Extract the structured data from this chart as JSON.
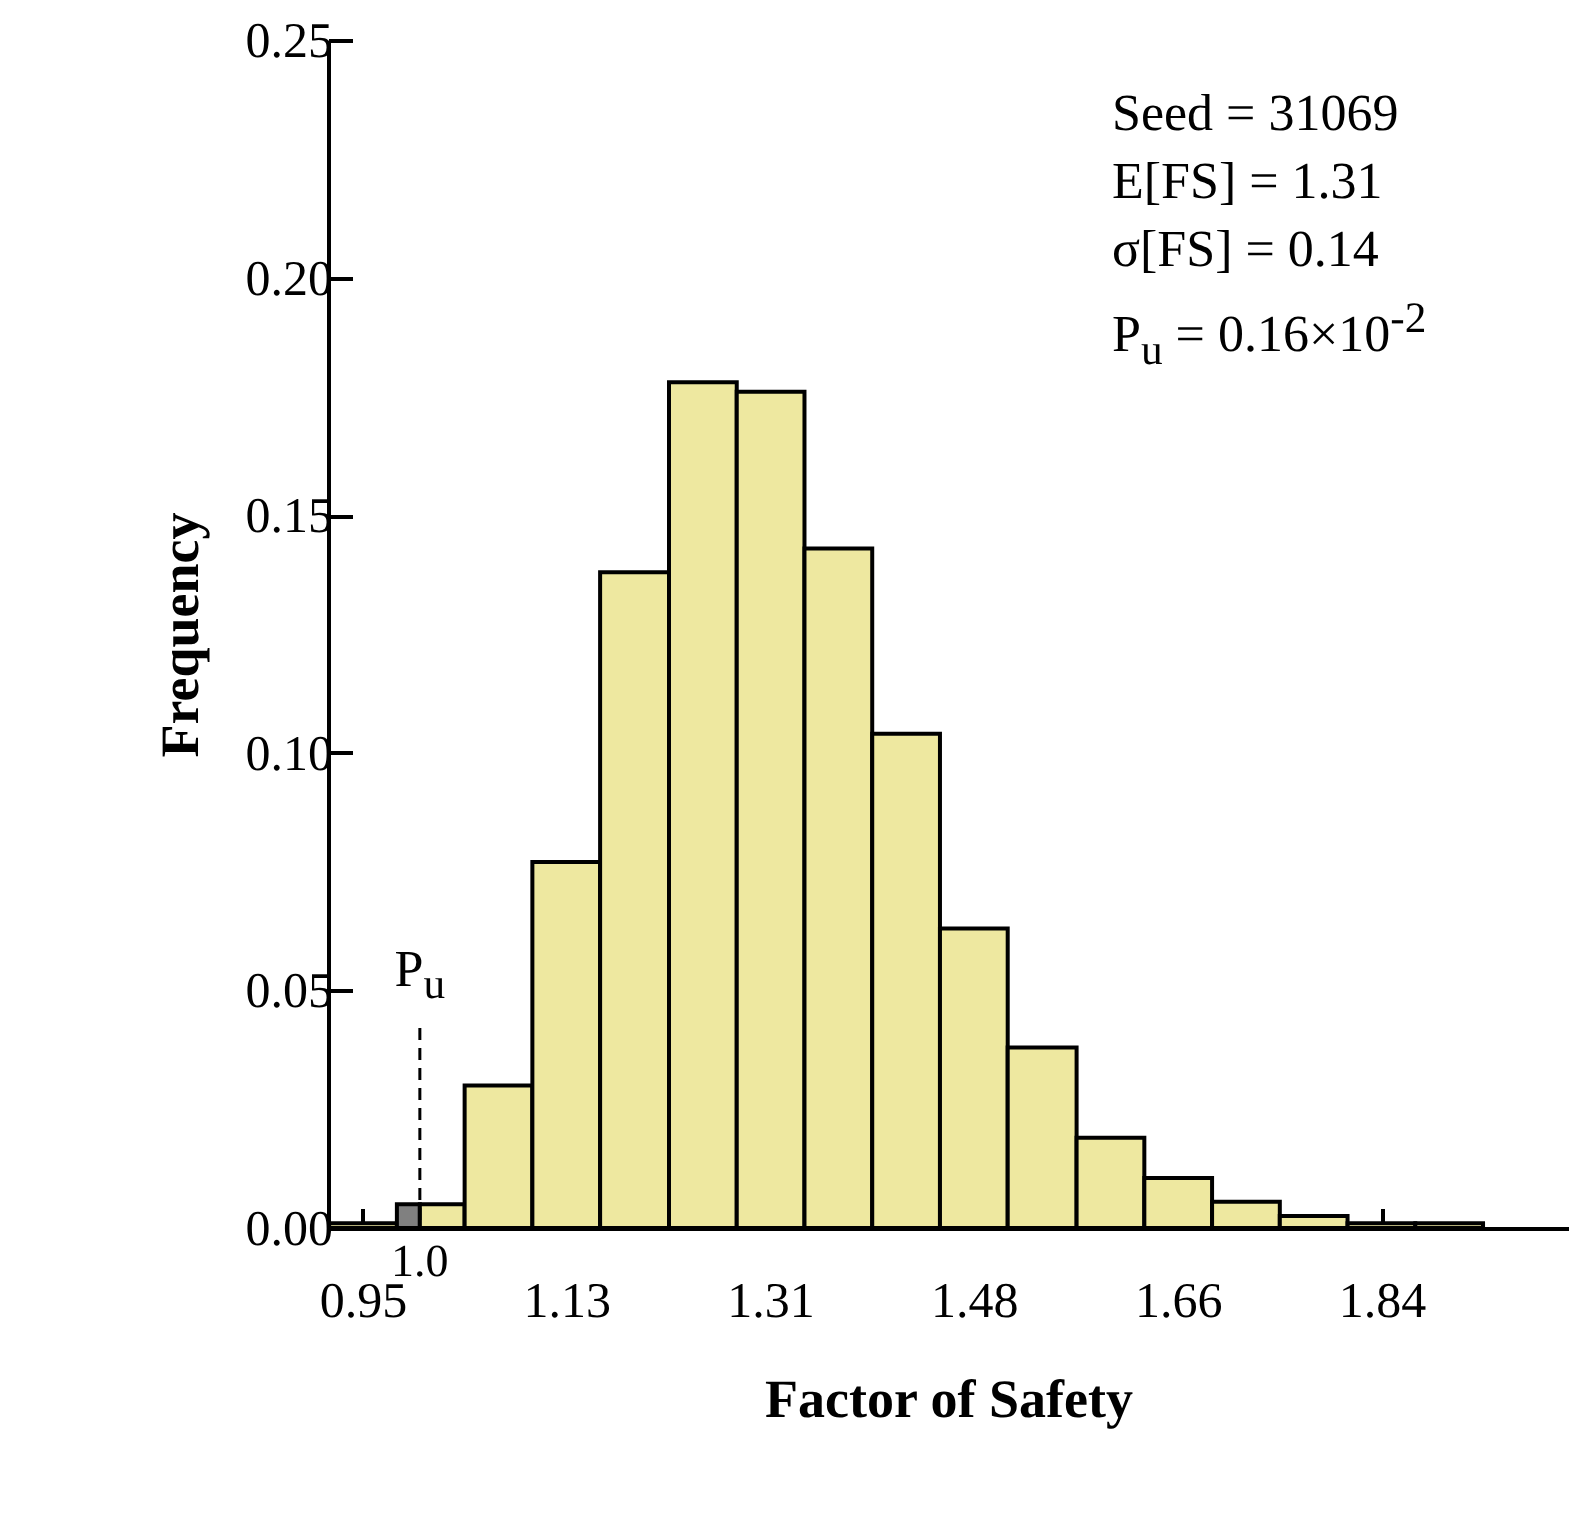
{
  "chart_data": {
    "type": "histogram",
    "xlabel": "Factor of Safety",
    "ylabel": "Frequency",
    "bins": [
      0.921,
      0.98,
      1.0,
      1.039,
      1.098,
      1.157,
      1.217,
      1.276,
      1.335,
      1.394,
      1.453,
      1.512,
      1.572,
      1.631,
      1.69,
      1.749,
      1.808,
      1.867,
      1.926
    ],
    "values": [
      0.001,
      0.005,
      0.005,
      0.03,
      0.077,
      0.138,
      0.178,
      0.176,
      0.143,
      0.104,
      0.063,
      0.038,
      0.019,
      0.0105,
      0.0055,
      0.0025,
      0.001,
      0.001
    ],
    "colors": [
      "#eee8a0",
      "#808080",
      "#eee8a0",
      "#eee8a0",
      "#eee8a0",
      "#eee8a0",
      "#eee8a0",
      "#eee8a0",
      "#eee8a0",
      "#eee8a0",
      "#eee8a0",
      "#eee8a0",
      "#eee8a0",
      "#eee8a0",
      "#eee8a0",
      "#eee8a0",
      "#eee8a0",
      "#eee8a0"
    ],
    "xlim": [
      0.92,
      2.0
    ],
    "xticks": [
      0.95,
      {
        "value": 1.1275,
        "label": "1.13"
      },
      {
        "value": 1.305,
        "label": "1.31"
      },
      {
        "value": 1.4825,
        "label": "1.48"
      },
      1.66,
      {
        "value": 1.8375,
        "label": "1.84"
      }
    ],
    "ylim": [
      0,
      0.25
    ],
    "yticks": [
      {
        "value": 0,
        "label": "0.00"
      },
      0.05,
      {
        "value": 0.1,
        "label": "0.10"
      },
      0.15,
      {
        "value": 0.2,
        "label": "0.20"
      },
      0.25
    ],
    "ref_lines": [
      {
        "axis": "x",
        "value": 1.0,
        "label": "P$_{u}$",
        "line_style": "dashed"
      }
    ],
    "annotations": [
      "1.0",
      "Seed = 31069",
      "E[FS] = 1.31",
      "σ[FS] = 0.14",
      "P$_{u}$ = 0.16×10$^{-2}$"
    ],
    "grid": false
  }
}
